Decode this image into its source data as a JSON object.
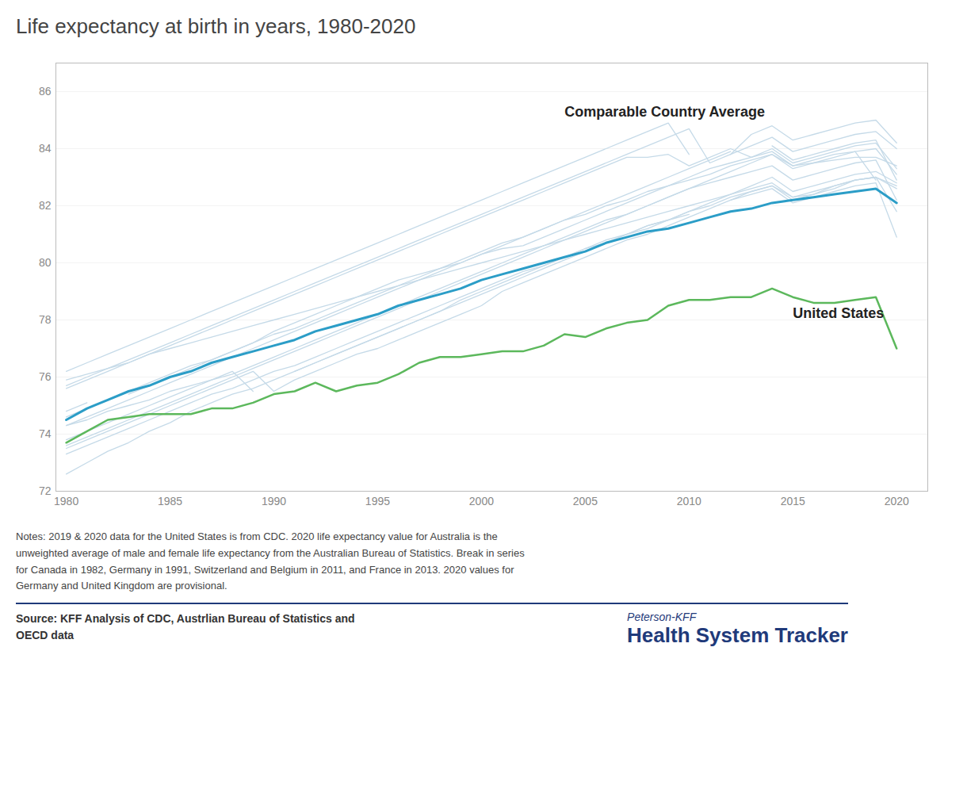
{
  "chart_data": {
    "type": "line",
    "title": "Life expectancy at birth in years, 1980-2020",
    "x": [
      1980,
      1981,
      1982,
      1983,
      1984,
      1985,
      1986,
      1987,
      1988,
      1989,
      1990,
      1991,
      1992,
      1993,
      1994,
      1995,
      1996,
      1997,
      1998,
      1999,
      2000,
      2001,
      2002,
      2003,
      2004,
      2005,
      2006,
      2007,
      2008,
      2009,
      2010,
      2011,
      2012,
      2013,
      2014,
      2015,
      2016,
      2017,
      2018,
      2019,
      2020
    ],
    "series": [
      {
        "color": "#c5dae8",
        "values": [
          74.6,
          74.9,
          75.2,
          75.5,
          75.8,
          76.1,
          76.4,
          76.6,
          76.9,
          77.2,
          77.5,
          77.7,
          78.0,
          78.3,
          78.6,
          78.9,
          79.2,
          79.5,
          79.8,
          80.1,
          80.4,
          80.7,
          80.9,
          81.2,
          81.5,
          81.7,
          82.0,
          82.2,
          82.5,
          82.7,
          82.9,
          83.1,
          83.4,
          83.6,
          83.8,
          83.4,
          83.5,
          83.6,
          83.7,
          83.7,
          83.4
        ]
      },
      {
        "color": "#c5dae8",
        "values": [
          72.6,
          73.0,
          73.4,
          73.7,
          74.1,
          74.4,
          74.8,
          75.1,
          75.4,
          75.6,
          75.9,
          76.2,
          76.5,
          76.8,
          77.1,
          77.4,
          77.7,
          78.0,
          78.3,
          78.7,
          79.0,
          79.3,
          79.6,
          79.9,
          80.2,
          80.5,
          80.8,
          81.0,
          81.3,
          81.5,
          81.8,
          82.0,
          82.3,
          82.5,
          82.7,
          82.3,
          82.4,
          82.7,
          82.9,
          83.0,
          81.8
        ]
      },
      {
        "color": "#c5dae8",
        "values": [
          73.3,
          73.6,
          73.9,
          74.2,
          74.5,
          74.8,
          75.1,
          75.4,
          75.6,
          75.9,
          76.2,
          76.4,
          76.7,
          77.0,
          77.3,
          77.6,
          77.9,
          78.2,
          78.5,
          78.8,
          79.1,
          79.4,
          79.7,
          79.9,
          80.2,
          80.5,
          80.7,
          81.0,
          81.2,
          81.5,
          81.7,
          null,
          82.2,
          82.4,
          82.6,
          82.1,
          82.3,
          82.5,
          82.7,
          82.8,
          80.9
        ]
      },
      {
        "color": "#c5dae8",
        "values": [
          74.8,
          75.1,
          null,
          75.4,
          75.7,
          76.0,
          76.3,
          76.6,
          76.9,
          77.2,
          77.6,
          77.9,
          78.2,
          78.5,
          78.8,
          79.1,
          79.4,
          79.6,
          79.8,
          80.0,
          80.3,
          80.5,
          80.6,
          80.9,
          81.2,
          81.5,
          81.8,
          82.1,
          82.4,
          82.7,
          83.0,
          83.3,
          83.5,
          83.7,
          83.9,
          83.4,
          83.6,
          83.8,
          83.9,
          82.9,
          null
        ]
      },
      {
        "color": "#c5dae8",
        "values": [
          74.3,
          74.5,
          74.8,
          75.0,
          75.2,
          75.5,
          75.7,
          75.9,
          76.1,
          76.4,
          76.7,
          77.0,
          77.3,
          77.6,
          77.9,
          78.2,
          78.5,
          78.8,
          79.1,
          79.4,
          79.7,
          80.0,
          80.3,
          80.6,
          80.9,
          81.2,
          81.5,
          81.7,
          82.0,
          82.3,
          82.6,
          82.8,
          83.0,
          83.2,
          83.4,
          82.9,
          83.1,
          83.3,
          83.5,
          83.6,
          82.2
        ]
      },
      {
        "color": "#c5dae8",
        "values": [
          73.5,
          73.8,
          74.1,
          74.4,
          74.7,
          75.0,
          75.3,
          75.6,
          75.9,
          76.2,
          75.5,
          75.9,
          76.2,
          76.5,
          76.8,
          77.0,
          77.3,
          77.6,
          77.9,
          78.2,
          78.5,
          79.0,
          79.3,
          79.6,
          79.9,
          80.2,
          80.5,
          80.8,
          81.0,
          81.3,
          81.6,
          81.9,
          82.2,
          82.5,
          82.7,
          82.2,
          82.4,
          82.6,
          82.9,
          83.0,
          82.7
        ]
      },
      {
        "color": "#c5dae8",
        "values": [
          74.3,
          74.6,
          74.9,
          75.2,
          75.5,
          75.8,
          76.1,
          76.4,
          76.7,
          77.0,
          77.3,
          77.6,
          77.9,
          78.2,
          78.5,
          78.8,
          79.1,
          79.4,
          79.7,
          80.0,
          80.3,
          80.6,
          80.9,
          81.2,
          81.5,
          81.8,
          82.1,
          82.4,
          82.7,
          83.0,
          83.3,
          83.6,
          83.9,
          null,
          84.1,
          83.6,
          83.8,
          84.0,
          84.2,
          84.3,
          82.9
        ]
      },
      {
        "color": "#c5dae8",
        "values": [
          73.8,
          74.1,
          74.4,
          74.7,
          75.0,
          75.3,
          75.6,
          75.9,
          76.2,
          75.5,
          null,
          76.2,
          76.5,
          76.8,
          77.1,
          77.4,
          77.7,
          78.0,
          78.3,
          78.6,
          78.9,
          79.2,
          79.5,
          79.8,
          80.1,
          80.4,
          80.7,
          81.0,
          81.3,
          81.5,
          81.8,
          82.1,
          82.4,
          82.7,
          83.0,
          82.5,
          82.7,
          82.9,
          83.1,
          83.2,
          82.8
        ]
      },
      {
        "color": "#c5dae8",
        "values": [
          75.9,
          76.1,
          76.3,
          76.5,
          76.8,
          77.0,
          77.2,
          77.4,
          77.6,
          77.8,
          78.0,
          78.2,
          78.4,
          78.6,
          78.8,
          79.0,
          79.2,
          79.4,
          79.6,
          79.8,
          80.0,
          80.2,
          80.4,
          80.6,
          80.8,
          81.0,
          81.2,
          81.4,
          81.6,
          81.8,
          82.0,
          82.2,
          82.4,
          82.6,
          82.8,
          82.3,
          82.5,
          82.7,
          82.9,
          83.0,
          82.6
        ]
      },
      {
        "color": "#c5dae8",
        "values": [
          75.6,
          75.9,
          76.2,
          76.5,
          76.8,
          77.1,
          77.4,
          77.7,
          78.0,
          78.3,
          78.6,
          78.9,
          79.2,
          79.5,
          79.8,
          80.1,
          80.4,
          80.7,
          81.0,
          81.3,
          81.6,
          81.9,
          82.2,
          82.5,
          82.8,
          83.1,
          83.4,
          83.7,
          83.7,
          83.8,
          83.4,
          83.7,
          84.0,
          83.7,
          84.0,
          83.5,
          83.7,
          83.9,
          84.1,
          84.2,
          83.3
        ]
      },
      {
        "color": "#c5dae8",
        "values": [
          75.7,
          76.0,
          76.3,
          76.6,
          76.9,
          77.2,
          77.5,
          77.8,
          78.1,
          78.4,
          78.7,
          79.0,
          79.3,
          79.6,
          79.9,
          80.2,
          80.5,
          80.8,
          81.1,
          81.4,
          81.7,
          82.0,
          82.3,
          82.6,
          82.9,
          83.2,
          83.5,
          83.8,
          84.1,
          84.4,
          84.7,
          83.5,
          83.8,
          84.1,
          84.4,
          83.9,
          84.1,
          84.3,
          84.5,
          84.6,
          84.0
        ]
      },
      {
        "color": "#c5dae8",
        "values": [
          76.2,
          76.5,
          76.8,
          77.1,
          77.4,
          77.7,
          78.0,
          78.3,
          78.6,
          78.9,
          79.2,
          79.5,
          79.8,
          80.1,
          80.4,
          80.7,
          81.0,
          81.3,
          81.6,
          81.9,
          82.2,
          82.5,
          82.8,
          83.1,
          83.4,
          83.7,
          84.0,
          84.3,
          84.6,
          84.9,
          83.8,
          null,
          83.8,
          84.5,
          84.8,
          84.3,
          84.5,
          84.7,
          84.9,
          85.0,
          84.2
        ]
      },
      {
        "color": "#c5dae8",
        "values": [
          73.6,
          73.9,
          74.2,
          74.5,
          74.8,
          75.1,
          75.4,
          75.7,
          76.0,
          76.3,
          76.6,
          76.9,
          77.2,
          77.5,
          77.8,
          78.1,
          78.4,
          78.7,
          79.0,
          79.3,
          79.6,
          79.9,
          80.2,
          80.5,
          80.8,
          81.1,
          81.4,
          81.7,
          82.0,
          82.3,
          82.6,
          82.9,
          83.2,
          83.5,
          83.8,
          83.3,
          83.5,
          83.7,
          83.9,
          84.0,
          83.1
        ]
      },
      {
        "name": "Comparable Country Average",
        "color": "#2b9dc7",
        "values": [
          74.5,
          74.9,
          75.2,
          75.5,
          75.7,
          76.0,
          76.2,
          76.5,
          76.7,
          76.9,
          77.1,
          77.3,
          77.6,
          77.8,
          78.0,
          78.2,
          78.5,
          78.7,
          78.9,
          79.1,
          79.4,
          79.6,
          79.8,
          80.0,
          80.2,
          80.4,
          80.7,
          80.9,
          81.1,
          81.2,
          81.4,
          81.6,
          81.8,
          81.9,
          82.1,
          82.2,
          82.3,
          82.4,
          82.5,
          82.6,
          82.1
        ]
      },
      {
        "name": "United States",
        "color": "#5cb85c",
        "values": [
          73.7,
          74.1,
          74.5,
          74.6,
          74.7,
          74.7,
          74.7,
          74.9,
          74.9,
          75.1,
          75.4,
          75.5,
          75.8,
          75.5,
          75.7,
          75.8,
          76.1,
          76.5,
          76.7,
          76.7,
          76.8,
          76.9,
          76.9,
          77.1,
          77.5,
          77.4,
          77.7,
          77.9,
          78.0,
          78.5,
          78.7,
          78.7,
          78.8,
          78.8,
          79.1,
          78.8,
          78.6,
          78.6,
          78.7,
          78.8,
          77.0
        ]
      }
    ],
    "xlim": [
      1979.5,
      2021.5
    ],
    "ylim": [
      72,
      87
    ],
    "xticks": [
      1980,
      1985,
      1990,
      1995,
      2000,
      2005,
      2010,
      2015,
      2020
    ],
    "yticks": [
      72,
      74,
      76,
      78,
      80,
      82,
      84,
      86
    ],
    "grid": true,
    "notes": "Notes: 2019 & 2020 data for the United States is from CDC. 2020 life expectancy value for Australia is the\nunweighted average of male and female life expectancy from the Australian Bureau of Statistics. Break in series\nfor Canada in 1982, Germany in 1991, Switzerland and Belgium in 2011, and France in 2013. 2020 values for\nGermany and United Kingdom are provisional.",
    "source": "Source: KFF Analysis of CDC, Austrlian Bureau of Statistics and\nOECD data",
    "brand": [
      "Peterson-KFF",
      "Health System Tracker"
    ],
    "brand_color": "#1f3a7a"
  }
}
